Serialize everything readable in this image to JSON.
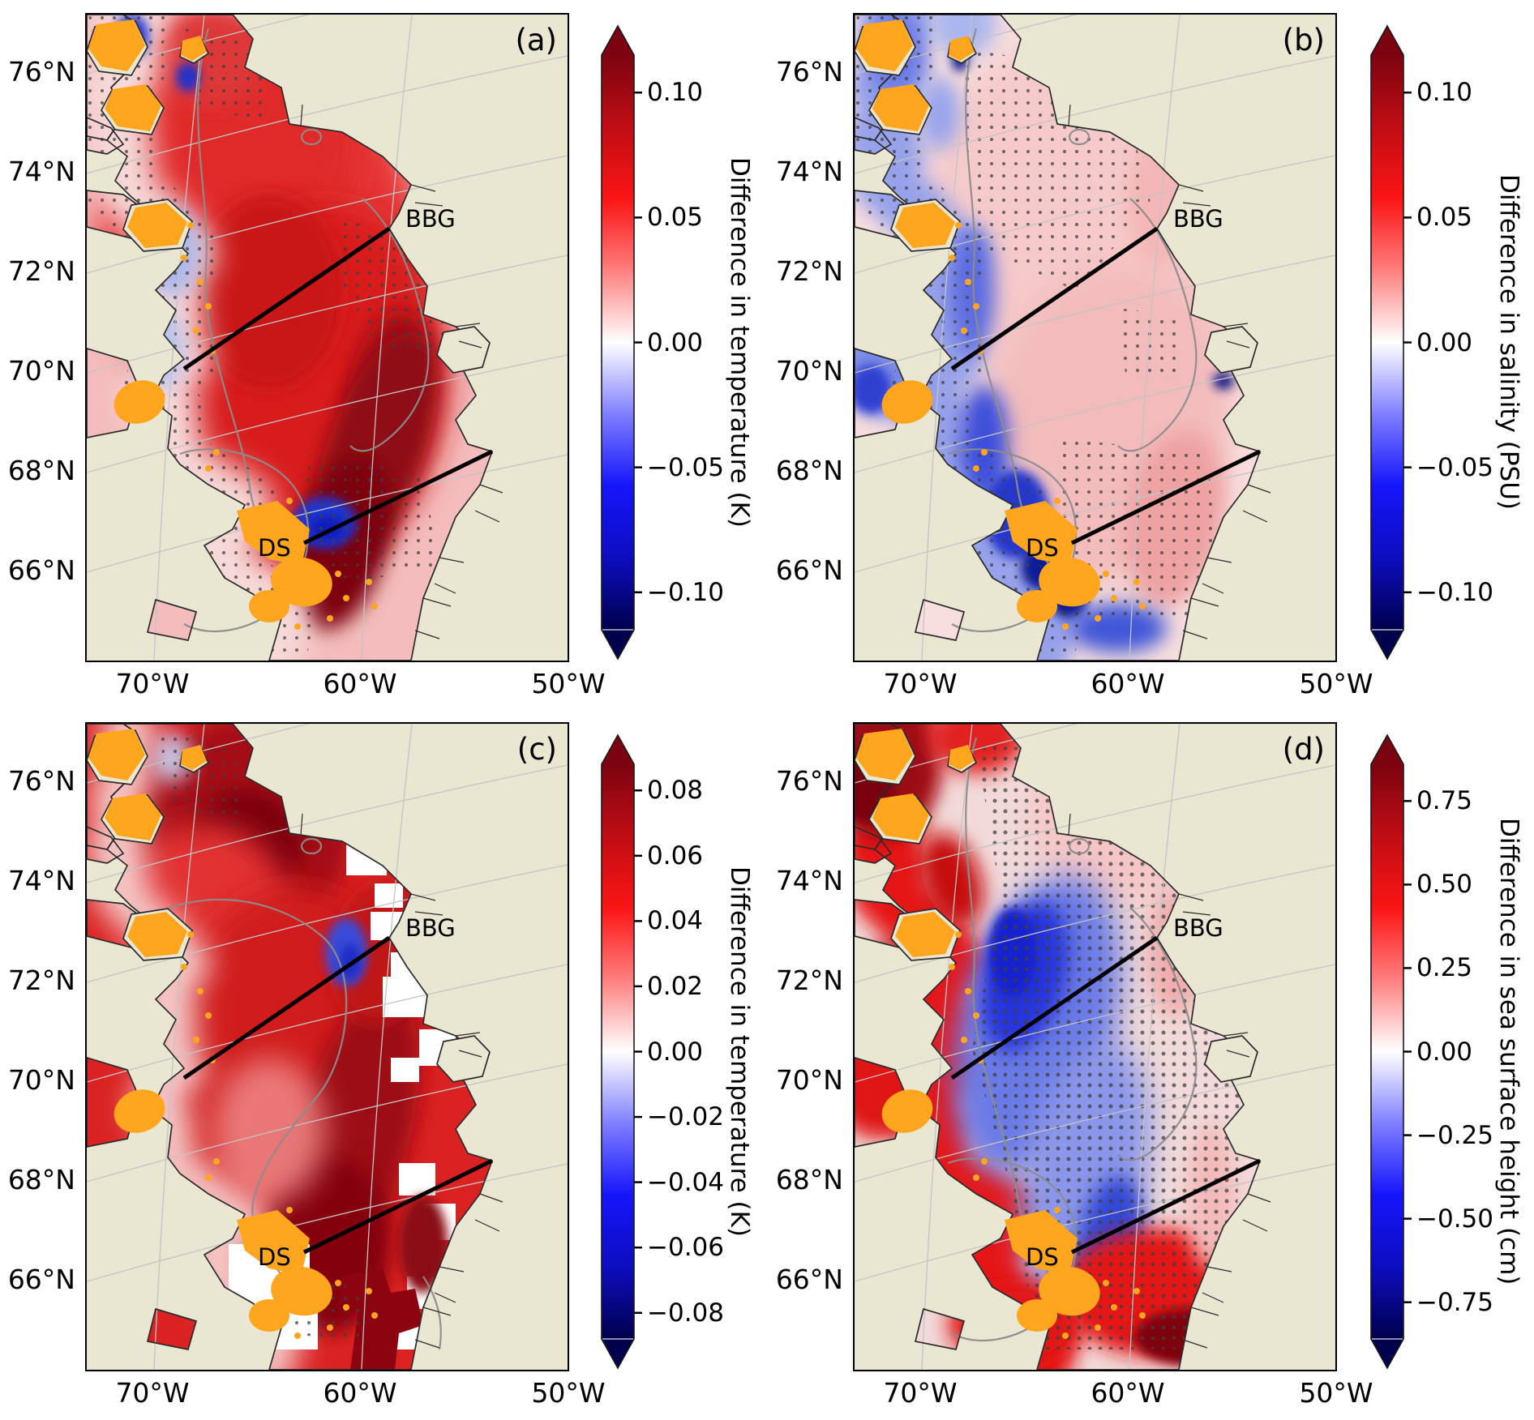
{
  "axes": {
    "lat_ticks": [
      "76°N",
      "74°N",
      "72°N",
      "70°N",
      "68°N",
      "66°N"
    ],
    "lon_ticks": [
      "70°W",
      "60°W",
      "50°W"
    ]
  },
  "annotations": {
    "bbg": "BBG",
    "ds": "DS"
  },
  "panels": [
    {
      "id": "a",
      "label": "(a)",
      "colorbar": {
        "title": "Difference in temperature (K)",
        "range": 0.115,
        "tick_values": [
          0.1,
          0.05,
          0.0,
          -0.05,
          -0.1
        ],
        "tick_labels": [
          "0.10",
          "0.05",
          "0.00",
          "−0.05",
          "−0.10"
        ]
      }
    },
    {
      "id": "b",
      "label": "(b)",
      "colorbar": {
        "title": "Difference in salinity (PSU)",
        "range": 0.115,
        "tick_values": [
          0.1,
          0.05,
          0.0,
          -0.05,
          -0.1
        ],
        "tick_labels": [
          "0.10",
          "0.05",
          "0.00",
          "−0.05",
          "−0.10"
        ]
      }
    },
    {
      "id": "c",
      "label": "(c)",
      "colorbar": {
        "title": "Difference in temperature (K)",
        "range": 0.088,
        "tick_values": [
          0.08,
          0.06,
          0.04,
          0.02,
          0.0,
          -0.02,
          -0.04,
          -0.06,
          -0.08
        ],
        "tick_labels": [
          "0.08",
          "0.06",
          "0.04",
          "0.02",
          "0.00",
          "−0.02",
          "−0.04",
          "−0.06",
          "−0.08"
        ]
      }
    },
    {
      "id": "d",
      "label": "(d)",
      "colorbar": {
        "title": "Difference in sea surface height (cm)",
        "range": 0.86,
        "tick_values": [
          0.75,
          0.5,
          0.25,
          0.0,
          -0.25,
          -0.5,
          -0.75
        ],
        "tick_labels": [
          "0.75",
          "0.50",
          "0.25",
          "0.00",
          "−0.25",
          "−0.50",
          "−0.75"
        ]
      }
    }
  ],
  "colors": {
    "land": "#e9e7d2",
    "ice_cap_orange": "#ffa51e",
    "colormap_top_red": "#7c0410",
    "colormap_mid_white": "#ffffff",
    "colormap_bottom_blue": "#00004d",
    "coastline": "#2b2b2b",
    "shelf_contour": "#8c8c8c",
    "transect_line": "#000000"
  }
}
